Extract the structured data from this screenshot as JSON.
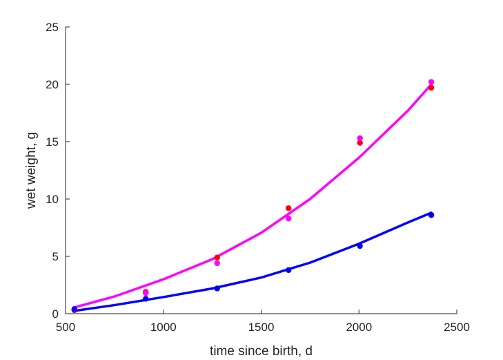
{
  "chart_data": {
    "type": "scatter",
    "xlabel": "time since birth, d",
    "ylabel": "wet weight, g",
    "xlim": [
      500,
      2500
    ],
    "ylim": [
      0,
      25
    ],
    "xticks": [
      500,
      1000,
      1500,
      2000,
      2500
    ],
    "yticks": [
      0,
      5,
      10,
      15,
      20,
      25
    ],
    "grid": false,
    "legend": "none",
    "series": [
      {
        "kind": "points",
        "color": "#ff0000",
        "x": [
          545,
          910,
          1275,
          1640,
          2005,
          2370
        ],
        "y": [
          0.3,
          1.9,
          4.9,
          9.2,
          14.9,
          19.7
        ]
      },
      {
        "kind": "points",
        "color": "#ff00ff",
        "x": [
          545,
          910,
          1275,
          1640,
          2005,
          2370
        ],
        "y": [
          0.4,
          1.8,
          4.4,
          8.3,
          15.3,
          20.2
        ]
      },
      {
        "kind": "points",
        "color": "#0000ff",
        "x": [
          545,
          910,
          1275,
          1640,
          2005,
          2370
        ],
        "y": [
          0.4,
          1.3,
          2.2,
          3.8,
          5.9,
          8.6
        ]
      },
      {
        "kind": "line",
        "color": "#ff00ff",
        "x": [
          545,
          750,
          1000,
          1250,
          1500,
          1750,
          2000,
          2250,
          2370
        ],
        "y": [
          0.55,
          1.5,
          3.0,
          4.75,
          7.05,
          10.0,
          13.6,
          17.7,
          20.0
        ]
      },
      {
        "kind": "line",
        "color": "#0000ff",
        "x": [
          545,
          750,
          1000,
          1250,
          1500,
          1750,
          2000,
          2250,
          2370
        ],
        "y": [
          0.25,
          0.75,
          1.45,
          2.2,
          3.15,
          4.45,
          6.1,
          7.95,
          8.8
        ]
      }
    ]
  }
}
